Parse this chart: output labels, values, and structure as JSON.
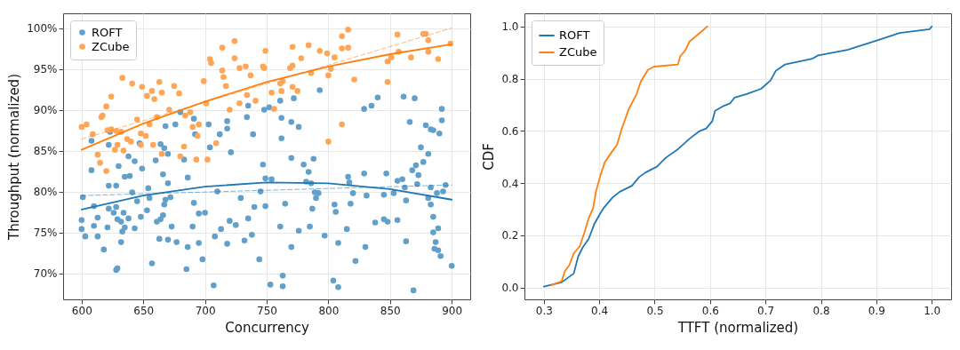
{
  "chart_data": [
    {
      "type": "scatter",
      "xlabel": "Concurrency",
      "ylabel": "Throughput (normalized)",
      "xlim": [
        585,
        915
      ],
      "xticks": [
        600,
        650,
        700,
        750,
        800,
        850,
        900
      ],
      "ylim": [
        66.8,
        101.8
      ],
      "yticks": [
        {
          "value": 70,
          "label": "70%"
        },
        {
          "value": 75,
          "label": "75%"
        },
        {
          "value": 80,
          "label": "80%"
        },
        {
          "value": 85,
          "label": "85%"
        },
        {
          "value": 90,
          "label": "90%"
        },
        {
          "value": 95,
          "label": "95%"
        },
        {
          "value": 100,
          "label": "100%"
        }
      ],
      "grid": true,
      "legend": "top left",
      "series": [
        {
          "name": "ROFT",
          "color": "#62a0ca",
          "x": [
            600,
            600,
            603,
            601,
            608,
            608,
            610,
            613,
            610,
            613,
            618,
            621,
            622,
            628,
            622,
            626,
            628,
            629,
            632,
            634,
            638,
            635,
            633,
            628,
            629,
            632,
            622,
            623,
            630,
            635,
            639,
            638,
            643,
            641,
            645,
            647,
            649,
            648,
            643,
            655,
            654,
            653,
            657,
            661,
            664,
            666,
            667,
            670,
            666,
            668,
            673,
            663,
            670,
            677,
            672,
            670,
            667,
            668,
            676,
            680,
            660,
            664,
            683,
            686,
            691,
            695,
            690,
            686,
            685,
            695,
            698,
            700,
            703,
            692,
            691,
            712,
            704,
            707,
            708,
            713,
            718,
            720,
            721,
            718,
            718,
            725,
            729,
            732,
            735,
            738,
            740,
            744,
            745,
            749,
            747,
            739,
            734,
            735,
            710,
            748,
            752,
            761,
            772,
            793,
            829,
            835,
            840,
            861,
            870,
            892,
            892,
            890,
            885,
            883,
            866,
            879,
            762,
            770,
            776,
            762,
            875,
            881,
            770,
            788,
            780,
            784,
            868,
            871,
            877,
            829,
            847,
            873,
            816,
            817,
            856,
            860,
            862,
            872,
            883,
            895,
            893,
            782,
            786,
            789,
            792,
            790,
            787,
            785,
            754,
            820,
            831,
            845,
            853,
            863,
            881,
            888,
            883,
            885,
            885,
            749,
            765,
            805,
            818,
            806,
            815,
            797,
            808,
            776,
            761,
            838,
            845,
            848,
            856,
            889,
            887,
            886,
            889,
            891,
            863,
            770,
            830,
            822,
            900,
            763,
            763,
            753,
            804,
            808,
            869
          ],
          "values": [
            76.5,
            75.4,
            74.5,
            79.3,
            86.2,
            82.6,
            78.2,
            76.8,
            75.8,
            74.5,
            72.9,
            75.6,
            80.7,
            80.7,
            77.9,
            77.4,
            78.1,
            76.6,
            76.3,
            77.4,
            76.7,
            75.6,
            75.1,
            70.4,
            70.6,
            73.8,
            85.7,
            87.3,
            83.1,
            81.8,
            81.9,
            84.3,
            83.7,
            79.9,
            78.8,
            85.9,
            82.8,
            76.9,
            75.5,
            79.2,
            80.4,
            77.7,
            71.2,
            76.3,
            76.6,
            77.1,
            78.4,
            81.0,
            82.1,
            79.0,
            75.7,
            74.2,
            74.1,
            73.8,
            79.3,
            84.6,
            85.3,
            88.0,
            88.2,
            89.7,
            83.8,
            85.8,
            83.9,
            81.7,
            78.6,
            77.3,
            75.7,
            73.2,
            70.5,
            73.7,
            71.7,
            77.4,
            88.2,
            87.0,
            88.9,
            87.0,
            85.4,
            68.5,
            74.5,
            75.4,
            73.6,
            76.4,
            84.8,
            87.7,
            88.6,
            75.9,
            79.2,
            74.0,
            76.7,
            74.7,
            78.1,
            71.7,
            80.0,
            81.6,
            83.3,
            87.0,
            89.1,
            90.5,
            80.0,
            90.0,
            90.3,
            91.1,
            91.4,
            92.4,
            90.1,
            90.5,
            91.5,
            91.6,
            91.4,
            90.1,
            88.7,
            87.1,
            87.5,
            87.6,
            88.5,
            88.1,
            89.0,
            88.5,
            87.9,
            86.5,
            85.4,
            84.6,
            84.1,
            84.0,
            83.3,
            82.4,
            82.6,
            83.2,
            83.6,
            82.2,
            82.2,
            82.0,
            81.8,
            81.1,
            81.3,
            81.5,
            80.5,
            80.9,
            80.5,
            80.8,
            80.0,
            81.2,
            81.0,
            79.9,
            79.8,
            79.2,
            77.9,
            75.7,
            81.5,
            79.8,
            79.5,
            79.6,
            79.8,
            78.9,
            79.2,
            79.8,
            78.4,
            76.9,
            75.0,
            78.2,
            78.5,
            78.4,
            78.5,
            77.5,
            75.4,
            74.6,
            73.7,
            75.2,
            75.7,
            76.2,
            76.6,
            76.3,
            76.5,
            75.5,
            73.8,
            73.0,
            72.8,
            72.1,
            73.9,
            73.2,
            73.2,
            71.5,
            70.9,
            69.7,
            68.4,
            68.6,
            69.1,
            68.3,
            67.9
          ]
        },
        {
          "name": "ZCube",
          "color": "#ffa556",
          "x": [
            600,
            604,
            609,
            613,
            615,
            620,
            616,
            617,
            620,
            624,
            621,
            624,
            628,
            632,
            633,
            641,
            649,
            653,
            657,
            659,
            663,
            665,
            627,
            629,
            634,
            637,
            640,
            645,
            648,
            648,
            652,
            655,
            658,
            661,
            665,
            671,
            675,
            679,
            684,
            688,
            683,
            680,
            690,
            694,
            695,
            704,
            705,
            699,
            714,
            715,
            717,
            701,
            702,
            693,
            709,
            714,
            724,
            724,
            728,
            733,
            737,
            720,
            728,
            734,
            741,
            748,
            749,
            747,
            754,
            756,
            762,
            761,
            763,
            769,
            771,
            771,
            775,
            771,
            778,
            784,
            786,
            793,
            799,
            800,
            802,
            805,
            811,
            816,
            811,
            816,
            821,
            848,
            848,
            851,
            857,
            856,
            867,
            877,
            879,
            881,
            881,
            889,
            899,
            800,
            811
          ],
          "values": [
            87.9,
            88.2,
            87.0,
            84.5,
            83.5,
            82.5,
            89.1,
            89.3,
            90.4,
            91.6,
            87.5,
            87.6,
            87.4,
            87.3,
            93.9,
            93.2,
            92.8,
            91.7,
            92.3,
            91.3,
            93.4,
            92.1,
            85.1,
            85.7,
            85.0,
            86.4,
            86.1,
            88.8,
            87.1,
            85.7,
            86.8,
            88.2,
            85.7,
            89.1,
            84.6,
            90.0,
            92.9,
            92.0,
            89.3,
            89.7,
            85.5,
            84.3,
            87.9,
            86.8,
            88.2,
            96.2,
            95.7,
            93.5,
            94.8,
            94.0,
            92.9,
            90.8,
            83.9,
            83.9,
            85.9,
            97.6,
            98.4,
            96.3,
            95.1,
            95.3,
            94.2,
            90.0,
            90.8,
            91.8,
            91.1,
            95.1,
            97.2,
            95.3,
            92.1,
            90.1,
            92.3,
            93.2,
            93.5,
            95.1,
            95.4,
            92.8,
            92.3,
            97.7,
            96.3,
            97.9,
            94.5,
            97.2,
            96.9,
            94.2,
            95.0,
            96.4,
            97.5,
            97.6,
            99.0,
            99.8,
            93.7,
            93.4,
            95.9,
            96.4,
            97.1,
            99.2,
            96.4,
            99.3,
            99.3,
            98.5,
            97.1,
            96.2,
            98.1,
            86.1,
            88.2
          ]
        },
        {
          "type": "line",
          "color": "#1f77b4",
          "line_style": "solid",
          "x": [
            600,
            650,
            700,
            750,
            800,
            850,
            900
          ],
          "values": [
            77.8,
            79.5,
            80.6,
            81.1,
            81.0,
            80.3,
            79.0
          ]
        },
        {
          "type": "line",
          "color": "#1f77b4",
          "line_style": "dashed",
          "x": [
            600,
            900
          ],
          "values": [
            79.5,
            80.8
          ]
        },
        {
          "type": "line",
          "color": "#ff7f0e",
          "line_style": "solid",
          "x": [
            600,
            650,
            700,
            750,
            800,
            850,
            900
          ],
          "values": [
            85.1,
            88.3,
            91.0,
            93.4,
            95.3,
            96.8,
            98.0
          ]
        },
        {
          "type": "line",
          "color": "#ff7f0e",
          "line_style": "dashed",
          "x": [
            600,
            900
          ],
          "values": [
            86.4,
            100.0
          ]
        }
      ]
    },
    {
      "type": "line",
      "xlabel": "TTFT (normalized)",
      "ylabel": "CDF",
      "xlim": [
        0.265,
        1.035
      ],
      "xticks": [
        0.3,
        0.4,
        0.5,
        0.6,
        0.7,
        0.8,
        0.9,
        {
          "value": 1,
          "label": "1.0"
        }
      ],
      "ylim": [
        -0.045,
        1.05
      ],
      "yticks": [
        {
          "value": 0,
          "label": "0.0"
        },
        0.2,
        0.4,
        0.6,
        0.8,
        {
          "value": 1,
          "label": "1.0"
        }
      ],
      "grid": true,
      "legend": "top left",
      "series": [
        {
          "name": "ROFT",
          "color": "#1f77b4",
          "x": [
            0.3,
            0.332,
            0.354,
            0.362,
            0.37,
            0.381,
            0.391,
            0.4,
            0.408,
            0.424,
            0.437,
            0.459,
            0.472,
            0.483,
            0.504,
            0.52,
            0.542,
            0.563,
            0.58,
            0.593,
            0.604,
            0.609,
            0.623,
            0.636,
            0.644,
            0.666,
            0.692,
            0.709,
            0.719,
            0.735,
            0.784,
            0.795,
            0.848,
            0.902,
            0.942,
            0.996,
            1.0
          ],
          "values": [
            0.004,
            0.02,
            0.054,
            0.119,
            0.153,
            0.187,
            0.243,
            0.277,
            0.305,
            0.345,
            0.367,
            0.39,
            0.423,
            0.44,
            0.463,
            0.497,
            0.53,
            0.57,
            0.598,
            0.609,
            0.637,
            0.677,
            0.694,
            0.705,
            0.727,
            0.741,
            0.761,
            0.793,
            0.831,
            0.854,
            0.876,
            0.889,
            0.91,
            0.947,
            0.975,
            0.989,
            1.0
          ]
        },
        {
          "name": "ZCube",
          "color": "#ff7f0e",
          "x": [
            0.313,
            0.332,
            0.338,
            0.346,
            0.354,
            0.365,
            0.373,
            0.381,
            0.389,
            0.394,
            0.402,
            0.41,
            0.421,
            0.432,
            0.44,
            0.453,
            0.467,
            0.475,
            0.488,
            0.499,
            0.542,
            0.546,
            0.555,
            0.563,
            0.585,
            0.595
          ],
          "values": [
            0.009,
            0.024,
            0.063,
            0.086,
            0.131,
            0.159,
            0.209,
            0.266,
            0.305,
            0.367,
            0.429,
            0.48,
            0.514,
            0.547,
            0.604,
            0.682,
            0.739,
            0.789,
            0.834,
            0.846,
            0.854,
            0.885,
            0.908,
            0.942,
            0.981,
            1.0
          ]
        }
      ]
    }
  ]
}
